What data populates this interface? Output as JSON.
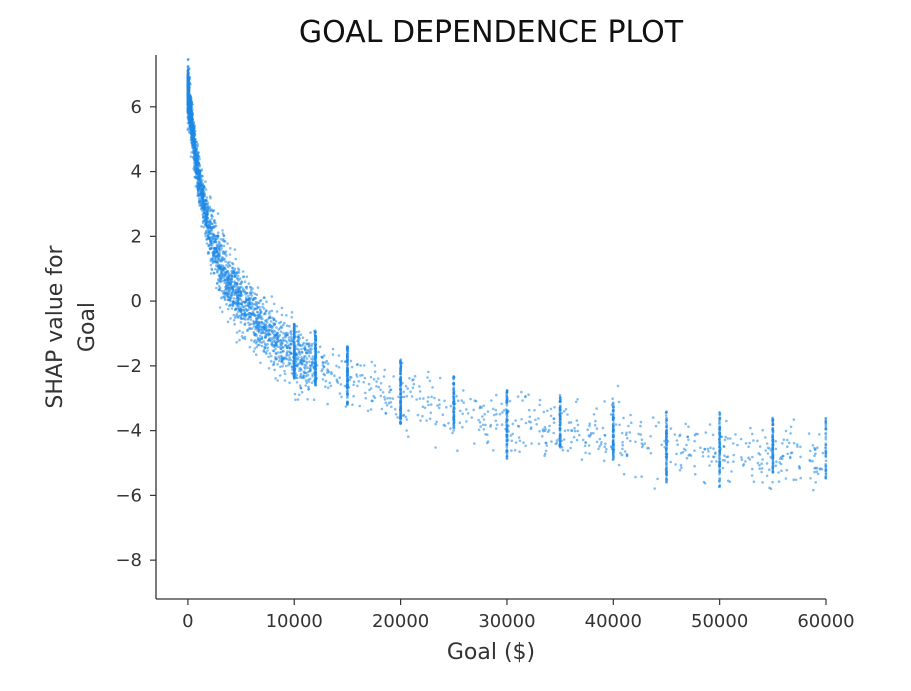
{
  "chart_data": {
    "type": "scatter",
    "title": "GOAL DEPENDENCE PLOT",
    "xlabel": "Goal ($)",
    "ylabel_lines": [
      "SHAP value for",
      "Goal"
    ],
    "xlim": [
      -3000,
      60000
    ],
    "ylim": [
      -9.2,
      7.6
    ],
    "xticks": [
      0,
      10000,
      20000,
      30000,
      40000,
      50000,
      60000
    ],
    "xtick_labels": [
      "0",
      "10000",
      "20000",
      "30000",
      "40000",
      "50000",
      "60000"
    ],
    "yticks": [
      6,
      4,
      2,
      0,
      -2,
      -4,
      -6,
      -8
    ],
    "ytick_labels": [
      "6",
      "4",
      "2",
      "0",
      "−2",
      "−4",
      "−6",
      "−8"
    ],
    "grid": false,
    "legend": "none",
    "point_color": "#1E88E5",
    "series": [
      {
        "trend_points": [
          {
            "x": 0,
            "y": 6.5
          },
          {
            "x": 500,
            "y": 5.0
          },
          {
            "x": 1000,
            "y": 3.8
          },
          {
            "x": 2000,
            "y": 2.2
          },
          {
            "x": 3000,
            "y": 1.1
          },
          {
            "x": 5000,
            "y": 0.0
          },
          {
            "x": 7500,
            "y": -1.0
          },
          {
            "x": 10000,
            "y": -1.7
          },
          {
            "x": 15000,
            "y": -2.5
          },
          {
            "x": 20000,
            "y": -3.0
          },
          {
            "x": 25000,
            "y": -3.4
          },
          {
            "x": 30000,
            "y": -3.8
          },
          {
            "x": 35000,
            "y": -4.0
          },
          {
            "x": 40000,
            "y": -4.2
          },
          {
            "x": 45000,
            "y": -4.5
          },
          {
            "x": 50000,
            "y": -4.7
          },
          {
            "x": 55000,
            "y": -4.8
          },
          {
            "x": 60000,
            "y": -4.9
          }
        ],
        "columns": [
          {
            "x": 10000,
            "y_range": [
              -2.4,
              -0.7
            ]
          },
          {
            "x": 12000,
            "y_range": [
              -2.6,
              -0.9
            ]
          },
          {
            "x": 15000,
            "y_range": [
              -3.2,
              -1.4
            ]
          },
          {
            "x": 20000,
            "y_range": [
              -3.8,
              -1.8
            ]
          },
          {
            "x": 25000,
            "y_range": [
              -4.0,
              -2.3
            ]
          },
          {
            "x": 30000,
            "y_range": [
              -4.9,
              -2.7
            ]
          },
          {
            "x": 35000,
            "y_range": [
              -4.5,
              -2.9
            ]
          },
          {
            "x": 40000,
            "y_range": [
              -4.9,
              -3.1
            ]
          },
          {
            "x": 45000,
            "y_range": [
              -5.6,
              -3.4
            ]
          },
          {
            "x": 50000,
            "y_range": [
              -5.8,
              -3.4
            ]
          },
          {
            "x": 55000,
            "y_range": [
              -5.3,
              -3.6
            ]
          },
          {
            "x": 60000,
            "y_range": [
              -5.5,
              -3.6
            ]
          }
        ]
      }
    ]
  }
}
